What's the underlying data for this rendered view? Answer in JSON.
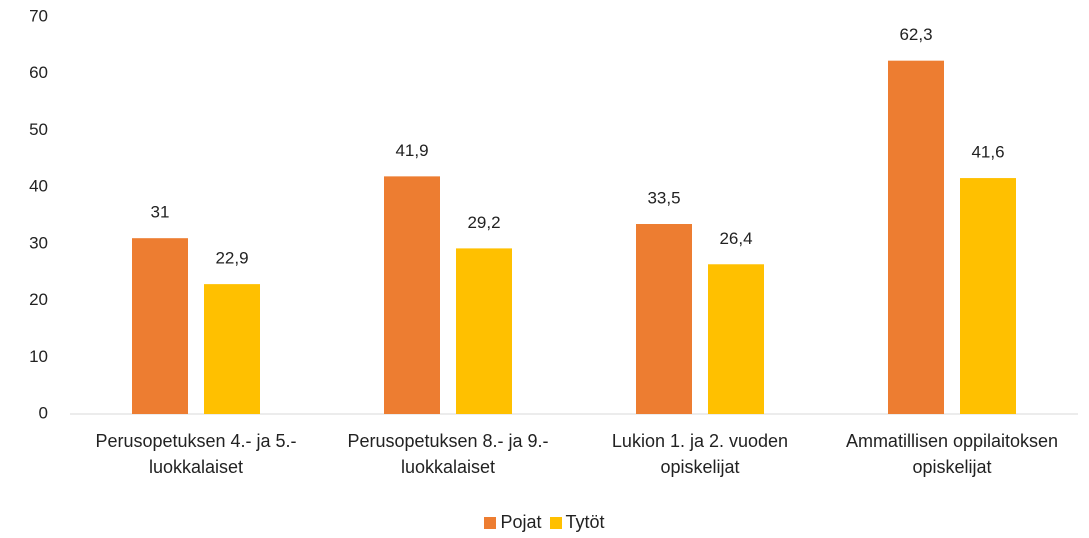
{
  "chart_data": {
    "type": "bar",
    "categories": [
      "Perusopetuksen 4.- ja 5.- luokkalaiset",
      "Perusopetuksen 8.- ja 9.- luokkalaiset",
      "Lukion 1. ja 2. vuoden opiskelijat",
      "Ammatillisen oppilaitoksen opiskelijat"
    ],
    "series": [
      {
        "name": "Pojat",
        "color": "#ed7d31",
        "values": [
          31,
          41.9,
          33.5,
          62.3
        ],
        "value_labels": [
          "31",
          "41,9",
          "33,5",
          "62,3"
        ]
      },
      {
        "name": "Tytöt",
        "color": "#ffc000",
        "values": [
          22.9,
          29.2,
          26.4,
          41.6
        ],
        "value_labels": [
          "22,9",
          "29,2",
          "26,4",
          "41,6"
        ]
      }
    ],
    "ylim": [
      0,
      70
    ],
    "yticks": [
      0,
      10,
      20,
      30,
      40,
      50,
      60,
      70
    ],
    "grid": false,
    "legend": "bottom"
  }
}
